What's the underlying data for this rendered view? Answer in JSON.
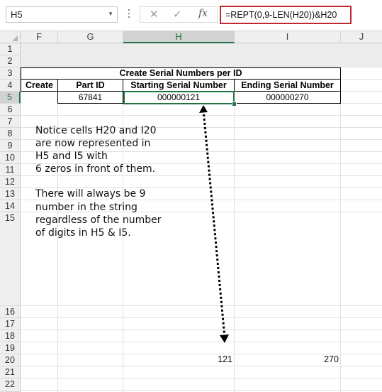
{
  "formula_bar": {
    "name_box": "H5",
    "cancel_icon": "✕",
    "enter_icon": "✓",
    "fx_label": "fx",
    "formula": "=REPT(0,9-LEN(H20))&H20"
  },
  "columns": [
    "F",
    "G",
    "H",
    "I",
    "J"
  ],
  "rows": [
    "1",
    "2",
    "3",
    "4",
    "5",
    "6",
    "7",
    "8",
    "9",
    "10",
    "11",
    "12",
    "13",
    "14",
    "15",
    "16",
    "17",
    "18",
    "19",
    "20",
    "21",
    "22"
  ],
  "table": {
    "title": "Create Serial Numbers per ID",
    "headers": [
      "Create",
      "Part ID",
      "Starting Serial Number",
      "Ending Serial Number"
    ],
    "row": [
      "",
      "67841",
      "000000121",
      "000000270"
    ]
  },
  "annotation_1": [
    "Notice cells H20 and I20",
    "are now represented in",
    "H5 and I5 with",
    "6 zeros in front of them."
  ],
  "annotation_2": [
    "There will always be 9",
    "number in the string",
    "regardless of the number",
    "of digits in H5 & I5."
  ],
  "row20": {
    "h": "121",
    "i": "270"
  },
  "colors": {
    "accent": "#217346",
    "formula_highlight": "#c0282f"
  }
}
